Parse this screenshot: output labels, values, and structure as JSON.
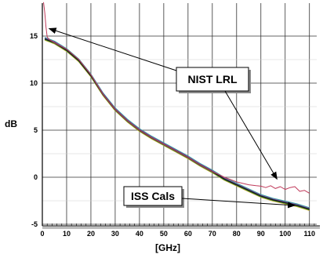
{
  "chart_data": {
    "type": "line",
    "title": "",
    "xlabel": "[GHz]",
    "ylabel": "dB",
    "xlim": [
      0,
      113
    ],
    "ylim": [
      -5,
      18.5
    ],
    "x_ticks": [
      0,
      10,
      20,
      30,
      40,
      50,
      60,
      70,
      80,
      90,
      100,
      110
    ],
    "y_ticks": [
      -5,
      0,
      5,
      10,
      15
    ],
    "y_tick_labels": [
      "-5",
      "0",
      "5",
      "10",
      "15"
    ],
    "grid": true,
    "series": [
      {
        "name": "NIST LRL",
        "color": "#c03a5a",
        "x": [
          0.5,
          1,
          1.5,
          2,
          3,
          5,
          10,
          15,
          20,
          25,
          30,
          35,
          40,
          45,
          50,
          55,
          60,
          65,
          70,
          75,
          80,
          85,
          88,
          90,
          92,
          94,
          96,
          98,
          100,
          102,
          104,
          106,
          108,
          110
        ],
        "y": [
          18.6,
          17.5,
          16.0,
          14.9,
          14.6,
          14.3,
          13.6,
          12.5,
          10.9,
          8.8,
          7.2,
          6.0,
          5.0,
          4.2,
          3.5,
          2.8,
          2.1,
          1.3,
          0.6,
          0.0,
          -0.5,
          -0.8,
          -0.9,
          -0.95,
          -1.1,
          -0.9,
          -1.2,
          -1.0,
          -1.3,
          -1.1,
          -1.0,
          -1.5,
          -1.4,
          -1.7
        ]
      },
      {
        "name": "ISS Cals",
        "color": "#1a1a1a",
        "x": [
          1,
          2,
          3,
          5,
          10,
          15,
          20,
          25,
          30,
          35,
          40,
          45,
          50,
          55,
          60,
          65,
          70,
          75,
          80,
          85,
          90,
          95,
          100,
          105,
          110
        ],
        "y": [
          14.7,
          14.6,
          14.5,
          14.3,
          13.5,
          12.4,
          10.8,
          8.8,
          7.2,
          6.0,
          5.0,
          4.2,
          3.5,
          2.8,
          2.1,
          1.3,
          0.6,
          -0.2,
          -0.8,
          -1.4,
          -2.0,
          -2.4,
          -2.7,
          -3.0,
          -3.4
        ]
      }
    ],
    "bundle_colors": [
      "#2fa8a0",
      "#d4a020",
      "#7a5aa8",
      "#2a9a3a",
      "#1a1a1a"
    ],
    "annotations": [
      {
        "text": "NIST LRL",
        "target_series": "NIST LRL"
      },
      {
        "text": "ISS Cals",
        "target_series": "ISS Cals"
      }
    ]
  }
}
